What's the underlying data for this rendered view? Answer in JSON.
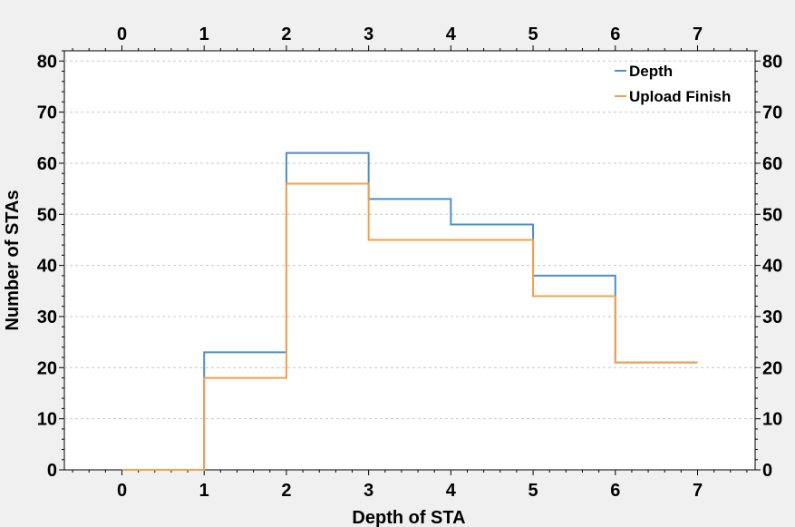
{
  "chart_data": {
    "type": "line",
    "step": "post",
    "xlabel": "Depth of STA",
    "ylabel": "Number of STAs",
    "xlim": [
      -0.7,
      7.7
    ],
    "ylim": [
      0,
      82
    ],
    "x_ticks": [
      0,
      1,
      2,
      3,
      4,
      5,
      6,
      7
    ],
    "y_ticks": [
      0,
      10,
      20,
      30,
      40,
      50,
      60,
      70,
      80
    ],
    "grid": true,
    "legend_position": "top-right",
    "x": [
      0,
      1,
      2,
      3,
      4,
      5,
      6,
      7
    ],
    "series": [
      {
        "name": "Depth",
        "color": "#4a8fc9",
        "values": [
          0,
          23,
          62,
          53,
          48,
          38,
          21,
          21
        ]
      },
      {
        "name": "Upload Finish",
        "color": "#f3a04a",
        "values": [
          0,
          18,
          56,
          45,
          45,
          34,
          21,
          21
        ]
      }
    ]
  }
}
